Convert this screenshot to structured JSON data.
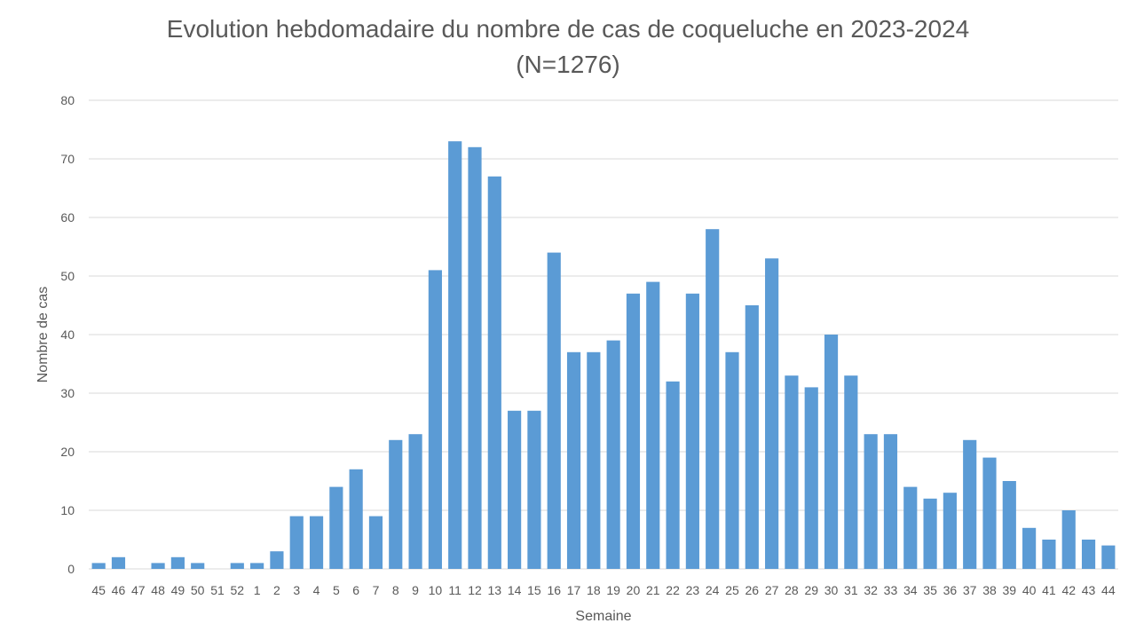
{
  "chart_data": {
    "type": "bar",
    "title": "Evolution hebdomadaire du nombre de cas de coqueluche en 2023-2024",
    "subtitle": "(N=1276)",
    "xlabel": "Semaine",
    "ylabel": "Nombre de cas",
    "ylim": [
      0,
      80
    ],
    "yticks": [
      0,
      10,
      20,
      30,
      40,
      50,
      60,
      70,
      80
    ],
    "grid": true,
    "bar_color": "#5b9bd5",
    "categories": [
      "45",
      "46",
      "47",
      "48",
      "49",
      "50",
      "51",
      "52",
      "1",
      "2",
      "3",
      "4",
      "5",
      "6",
      "7",
      "8",
      "9",
      "10",
      "11",
      "12",
      "13",
      "14",
      "15",
      "16",
      "17",
      "18",
      "19",
      "20",
      "21",
      "22",
      "23",
      "24",
      "25",
      "26",
      "27",
      "28",
      "29",
      "30",
      "31",
      "32",
      "33",
      "34",
      "35",
      "36",
      "37",
      "38",
      "39",
      "40",
      "41",
      "42",
      "43",
      "44"
    ],
    "values": [
      1,
      2,
      0,
      1,
      2,
      1,
      0,
      1,
      1,
      3,
      9,
      9,
      14,
      17,
      9,
      22,
      23,
      51,
      73,
      72,
      67,
      27,
      27,
      54,
      37,
      37,
      39,
      47,
      49,
      32,
      47,
      58,
      37,
      45,
      53,
      33,
      31,
      40,
      33,
      23,
      23,
      14,
      12,
      13,
      22,
      19,
      15,
      7,
      5,
      10,
      5,
      4
    ]
  }
}
